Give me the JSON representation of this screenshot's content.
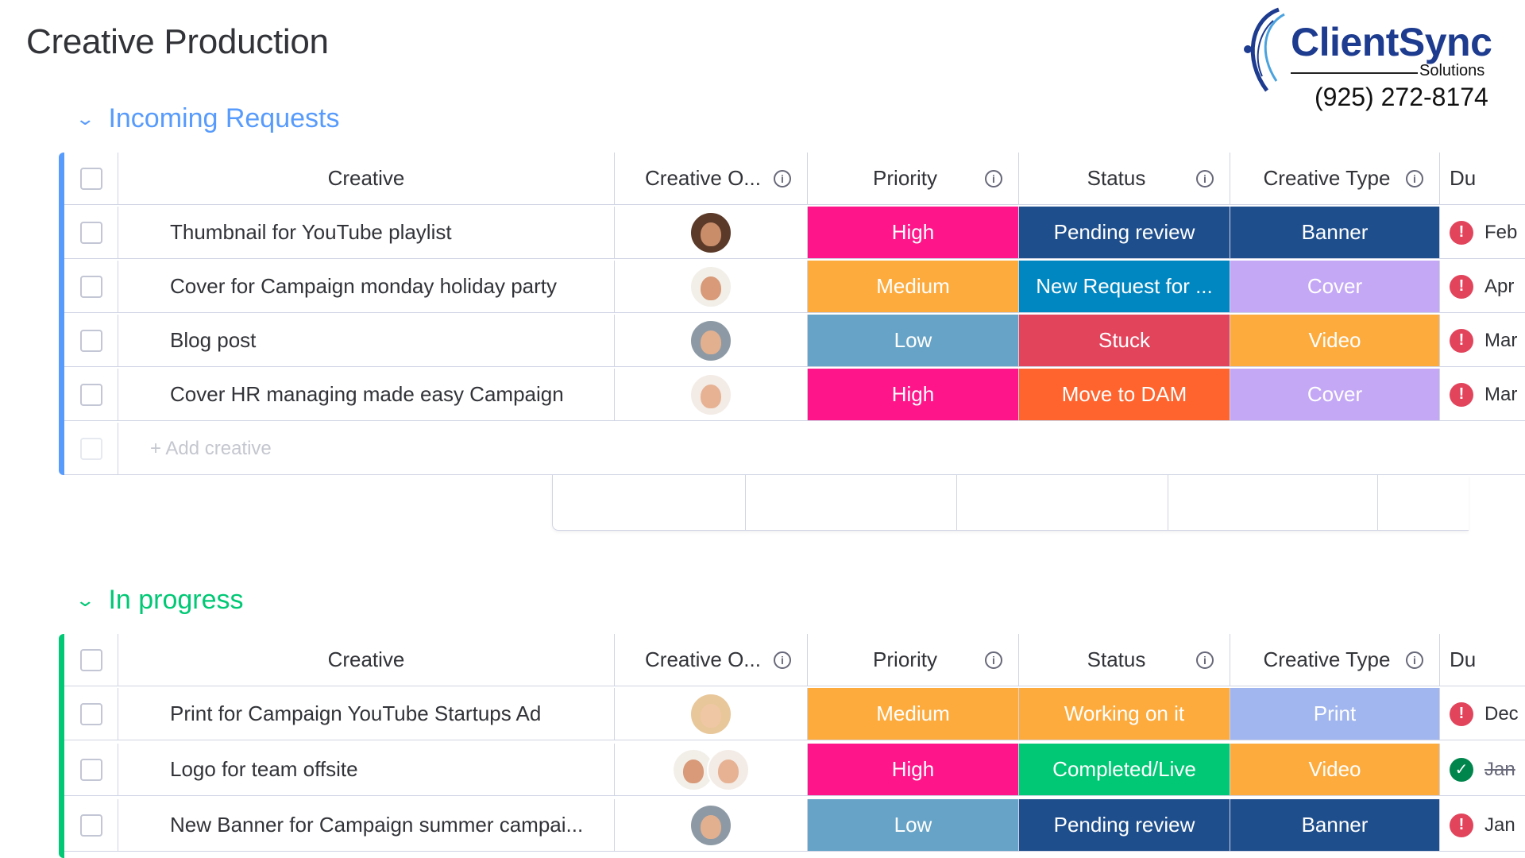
{
  "page": {
    "title": "Creative Production"
  },
  "logo": {
    "word": "ClientSync",
    "sub": "Solutions",
    "phone": "(925) 272-8174"
  },
  "columns": {
    "creative": "Creative",
    "owner": "Creative O...",
    "priority": "Priority",
    "status": "Status",
    "type": "Creative Type",
    "due": "Du"
  },
  "groups": [
    {
      "title": "Incoming Requests",
      "color": "#579bfc",
      "add_label": "+ Add creative",
      "rows": [
        {
          "name": "Thumbnail for YouTube playlist",
          "priority": "High",
          "status": "Pending review",
          "type": "Banner",
          "due": "Feb",
          "due_state": "overdue"
        },
        {
          "name": "Cover for Campaign monday holiday party",
          "priority": "Medium",
          "status": "New Request for ...",
          "type": "Cover",
          "due": "Apr",
          "due_state": "overdue"
        },
        {
          "name": "Blog post",
          "priority": "Low",
          "status": "Stuck",
          "type": "Video",
          "due": "Mar",
          "due_state": "overdue"
        },
        {
          "name": "Cover HR managing made easy Campaign",
          "priority": "High",
          "status": "Move to DAM",
          "type": "Cover",
          "due": "Mar",
          "due_state": "overdue"
        }
      ]
    },
    {
      "title": "In progress",
      "color": "#00c875",
      "rows": [
        {
          "name": "Print for Campaign YouTube Startups Ad",
          "priority": "Medium",
          "status": "Working on it",
          "type": "Print",
          "due": "Dec",
          "due_state": "overdue"
        },
        {
          "name": "Logo for team offsite",
          "priority": "High",
          "status": "Completed/Live",
          "type": "Video",
          "due": "Jan",
          "due_state": "done"
        },
        {
          "name": "New Banner for Campaign summer campai...",
          "priority": "Low",
          "status": "Pending review",
          "type": "Banner",
          "due": "Jan",
          "due_state": "overdue"
        }
      ]
    }
  ],
  "colors": {
    "High": "#ff158a",
    "Medium": "#fdab3d",
    "Low": "#66a3c6",
    "Pending review": "#1f4e8c",
    "New Request for ...": "#0086c0",
    "Stuck": "#e2445c",
    "Move to DAM": "#ff642e",
    "Working on it": "#fdab3d",
    "Completed/Live": "#00c875",
    "Banner": "#1f4e8c",
    "Cover": "#c4a8f6",
    "Video": "#fdab3d",
    "Print": "#a1b6ee",
    "overdue": "#e2445c",
    "done": "#00854d"
  },
  "icons": {
    "chevron": "chevron-down-icon",
    "info": "info-icon",
    "overdue": "alert-icon",
    "done": "check-circle-icon"
  }
}
